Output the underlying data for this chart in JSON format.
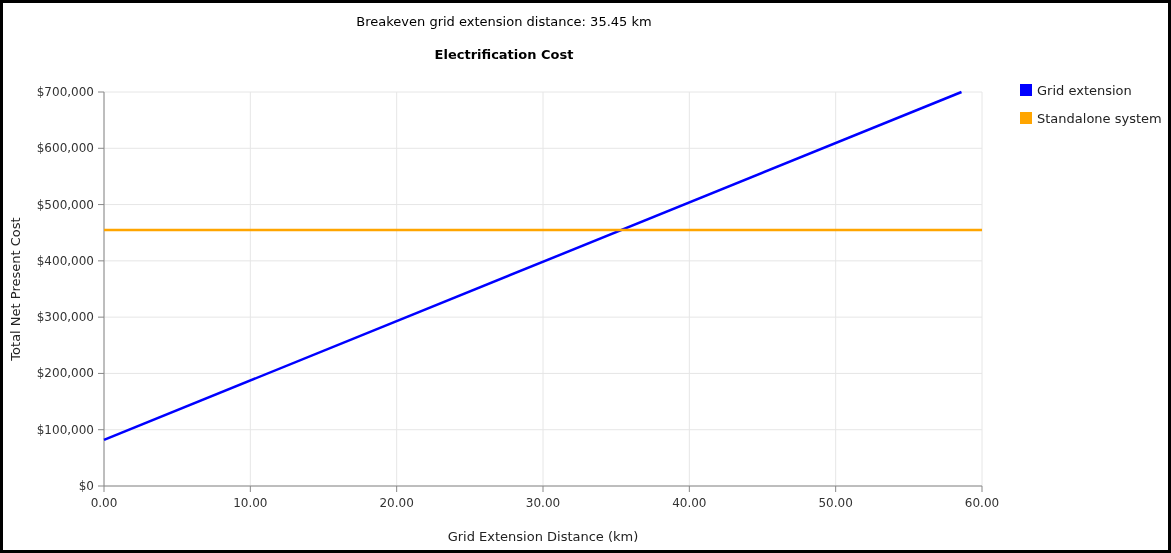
{
  "chart_data": {
    "type": "line",
    "title": "Electrification Cost",
    "annotations": [
      "Breakeven grid extension distance: 35.45 km"
    ],
    "xlabel": "Grid Extension Distance (km)",
    "ylabel": "Total Net Present Cost",
    "series": [
      {
        "name": "Grid extension",
        "color": "#0000ff",
        "x": [
          0,
          58.6
        ],
        "values": [
          82000,
          700000
        ]
      },
      {
        "name": "Standalone system",
        "color": "#ffa500",
        "x": [
          0,
          60
        ],
        "values": [
          455000,
          455000
        ]
      }
    ],
    "xlim": [
      0,
      60
    ],
    "xticks": [
      {
        "value": 0,
        "label": "0.00"
      },
      {
        "value": 10,
        "label": "10.00"
      },
      {
        "value": 20,
        "label": "20.00"
      },
      {
        "value": 30,
        "label": "30.00"
      },
      {
        "value": 40,
        "label": "40.00"
      },
      {
        "value": 50,
        "label": "50.00"
      },
      {
        "value": 60,
        "label": "60.00"
      }
    ],
    "ylim": [
      0,
      700000
    ],
    "yticks": [
      {
        "value": 0,
        "label": "$0"
      },
      {
        "value": 100000,
        "label": "$100,000"
      },
      {
        "value": 200000,
        "label": "$200,000"
      },
      {
        "value": 300000,
        "label": "$300,000"
      },
      {
        "value": 400000,
        "label": "$400,000"
      },
      {
        "value": 500000,
        "label": "$500,000"
      },
      {
        "value": 600000,
        "label": "$600,000"
      },
      {
        "value": 700000,
        "label": "$700,000"
      }
    ],
    "grid": true,
    "legend": "top right",
    "marker": "none",
    "line_style": "solid"
  }
}
